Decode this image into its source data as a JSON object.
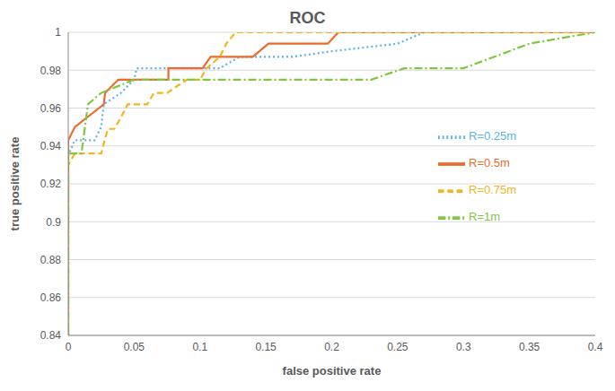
{
  "chart_data": {
    "type": "line",
    "title": "ROC",
    "x_label": "false positive rate",
    "y_label": "true positive rate",
    "xlim": [
      0,
      0.4
    ],
    "xticks": [
      0,
      0.05,
      0.1,
      0.15,
      0.2,
      0.25,
      0.3,
      0.35,
      0.4
    ],
    "ylim": [
      0.84,
      1
    ],
    "yticks": [
      0.84,
      0.86,
      0.88,
      0.9,
      0.92,
      0.94,
      0.96,
      0.98,
      1
    ],
    "grid": true,
    "legend": "right",
    "series": [
      {
        "name": "R=0.25m",
        "color": "#5ab4e5",
        "line_style": "dotted",
        "x": [
          0,
          0,
          0.005,
          0.02,
          0.025,
          0.027,
          0.04,
          0.05,
          0.052,
          0.076,
          0.115,
          0.13,
          0.17,
          0.2,
          0.25,
          0.27,
          0.4
        ],
        "values": [
          0.84,
          0.935,
          0.943,
          0.943,
          0.95,
          0.962,
          0.968,
          0.975,
          0.981,
          0.981,
          0.981,
          0.987,
          0.987,
          0.99,
          0.994,
          1,
          1
        ]
      },
      {
        "name": "R=0.5m",
        "color": "#ed6a2c",
        "line_style": "solid",
        "x": [
          0,
          0,
          0.005,
          0.027,
          0.028,
          0.038,
          0.076,
          0.076,
          0.102,
          0.108,
          0.14,
          0.152,
          0.197,
          0.205,
          0.4
        ],
        "values": [
          0.84,
          0.943,
          0.95,
          0.962,
          0.968,
          0.975,
          0.975,
          0.981,
          0.981,
          0.987,
          0.987,
          0.994,
          0.994,
          1,
          1
        ]
      },
      {
        "name": "R=0.75m",
        "color": "#f5b41e",
        "line_style": "dashed",
        "x": [
          0,
          0,
          0.005,
          0.025,
          0.03,
          0.035,
          0.04,
          0.045,
          0.06,
          0.065,
          0.075,
          0.09,
          0.1,
          0.105,
          0.115,
          0.12,
          0.127,
          0.4
        ],
        "values": [
          0.84,
          0.93,
          0.936,
          0.936,
          0.949,
          0.949,
          0.955,
          0.962,
          0.962,
          0.968,
          0.968,
          0.975,
          0.975,
          0.981,
          0.987,
          0.994,
          1,
          1
        ]
      },
      {
        "name": "R=1m",
        "color": "#7dc741",
        "line_style": "dashdot",
        "x": [
          0,
          0,
          0.01,
          0.015,
          0.025,
          0.05,
          0.23,
          0.255,
          0.3,
          0.35,
          0.4
        ],
        "values": [
          0.84,
          0.936,
          0.936,
          0.962,
          0.968,
          0.975,
          0.975,
          0.981,
          0.981,
          0.994,
          1
        ]
      }
    ]
  }
}
